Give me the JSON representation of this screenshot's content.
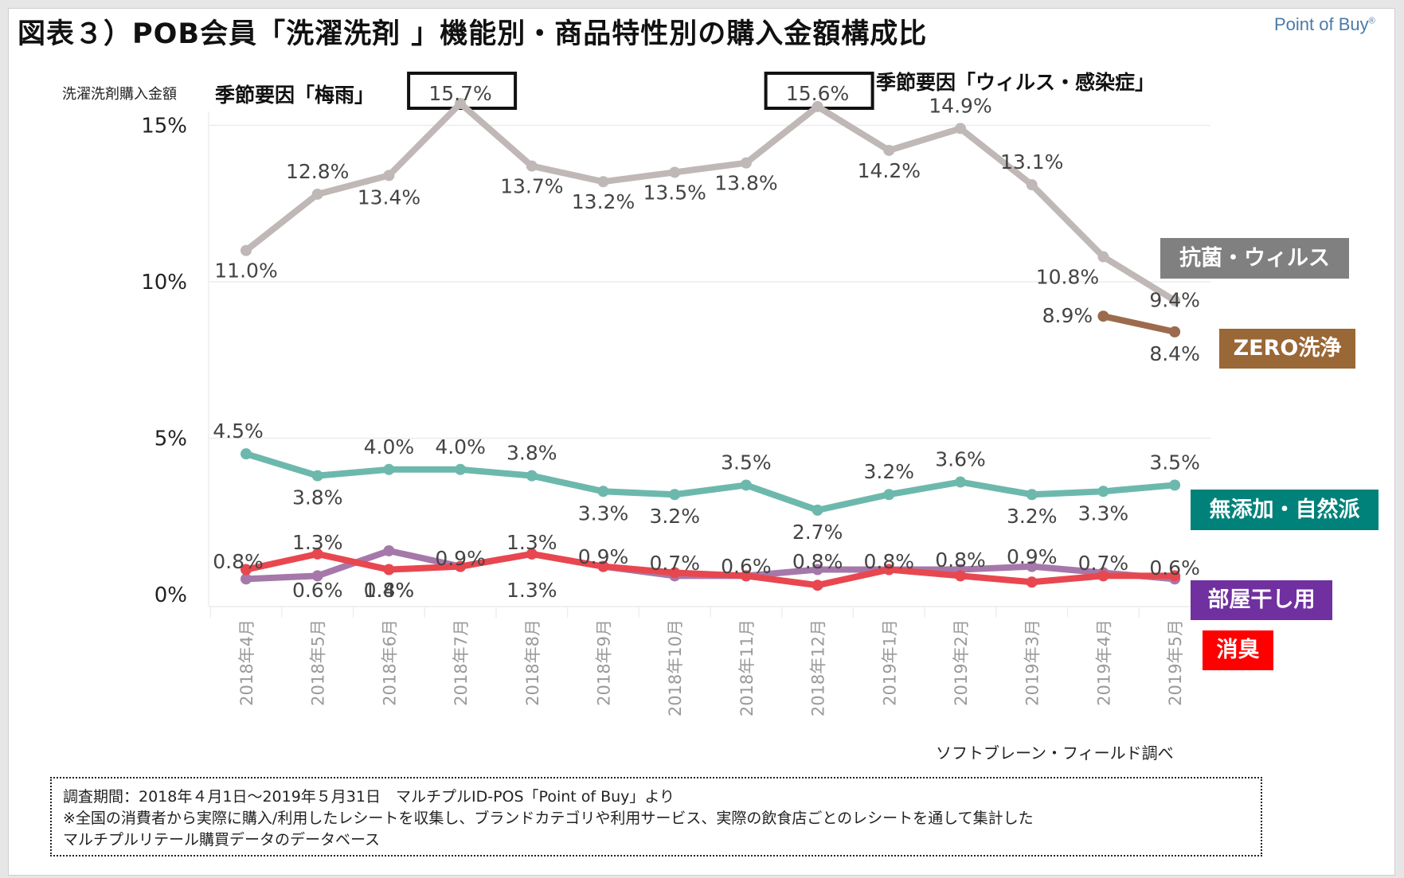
{
  "header": {
    "title": "図表３）POB会員「洗濯洗剤 」機能別・商品特性別の購入金額構成比",
    "logo": "Point of Buy",
    "logo_mark": "®"
  },
  "annotations": {
    "season_rain": "季節要因「梅雨」",
    "season_virus": "季節要因「ウィルス・感染症」",
    "boxed_values": [
      "15.7%",
      "15.6%"
    ]
  },
  "legend_badges": [
    {
      "label": "抗菌・ウィルス",
      "color": "#808080"
    },
    {
      "label": "ZERO洗浄",
      "color": "#9a6736"
    },
    {
      "label": "無添加・自然派",
      "color": "#00827a"
    },
    {
      "label": "部屋干し用",
      "color": "#7030a0"
    },
    {
      "label": "消臭",
      "color": "#ff0000"
    }
  ],
  "source": "ソフトブレーン・フィールド調べ",
  "footnote": {
    "line1": "調査期間：2018年４月1日～2019年５月31日　マルチプルID-POS「Point of Buy」より",
    "line2": "※全国の消費者から実際に購入/利用したレシートを収集し、ブランドカテゴリや利用サービス、実際の飲食店ごとのレシートを通して集計した",
    "line3": "マルチプルリテール購買データのデータベース"
  },
  "chart_data": {
    "type": "line",
    "title": "図表３）POB会員「洗濯洗剤 」機能別・商品特性別の購入金額構成比",
    "xlabel": "",
    "ylabel": "洗濯洗剤購入金額",
    "ylim": [
      0,
      15.7
    ],
    "yticks": [
      0,
      5,
      10,
      15
    ],
    "ytick_labels": [
      "0%",
      "5%",
      "10%",
      "15%"
    ],
    "grid": true,
    "legend_placement": "right",
    "categories": [
      "2018年4月",
      "2018年5月",
      "2018年6月",
      "2018年7月",
      "2018年8月",
      "2018年9月",
      "2018年10月",
      "2018年11月",
      "2018年12月",
      "2019年1月",
      "2019年2月",
      "2019年3月",
      "2019年4月",
      "2019年5月"
    ],
    "series": [
      {
        "name": "抗菌・ウィルス",
        "color": "#bfb8b6",
        "values": [
          11.0,
          12.8,
          13.4,
          15.7,
          13.7,
          13.2,
          13.5,
          13.8,
          15.6,
          14.2,
          14.9,
          13.1,
          10.8,
          9.4
        ]
      },
      {
        "name": "ZERO洗浄",
        "color": "#9c6b4e",
        "values": [
          null,
          null,
          null,
          null,
          null,
          null,
          null,
          null,
          null,
          null,
          null,
          null,
          8.9,
          8.4
        ]
      },
      {
        "name": "無添加・自然派",
        "color": "#6db8ad",
        "values": [
          4.5,
          3.8,
          4.0,
          4.0,
          3.8,
          3.3,
          3.2,
          3.5,
          2.7,
          3.2,
          3.6,
          3.2,
          3.3,
          3.5
        ]
      },
      {
        "name": "部屋干し用",
        "color": "#a678aa",
        "values": [
          0.5,
          0.6,
          1.4,
          0.9,
          1.3,
          0.9,
          0.6,
          0.6,
          0.8,
          0.8,
          0.8,
          0.9,
          0.7,
          0.5
        ]
      },
      {
        "name": "消臭",
        "color": "#e8474f",
        "values": [
          0.8,
          1.3,
          0.8,
          0.9,
          1.3,
          0.9,
          0.7,
          0.6,
          0.3,
          0.8,
          0.6,
          0.4,
          0.6,
          0.6
        ]
      }
    ],
    "data_labels": {
      "抗菌・ウィルス": [
        "11.0%",
        "12.8%",
        "13.4%",
        "15.7%",
        "13.7%",
        "13.2%",
        "13.5%",
        "13.8%",
        "15.6%",
        "14.2%",
        "14.9%",
        "13.1%",
        "10.8%",
        "9.4%"
      ],
      "ZERO洗浄": [
        null,
        null,
        null,
        null,
        null,
        null,
        null,
        null,
        null,
        null,
        null,
        null,
        "8.9%",
        "8.4%"
      ],
      "無添加・自然派": [
        "4.5%",
        "3.8%",
        "4.0%",
        "4.0%",
        "3.8%",
        "3.3%",
        "3.2%",
        "3.5%",
        "2.7%",
        "3.2%",
        "3.6%",
        "3.2%",
        "3.3%",
        "3.5%"
      ],
      "部屋干し用": [
        null,
        "0.6%",
        "1.4%",
        "0.9%",
        "1.3%",
        "0.9%",
        null,
        null,
        "0.8%",
        "0.8%",
        "0.8%",
        "0.9%",
        "0.7%",
        null
      ],
      "消臭": [
        "0.8%",
        "1.3%",
        "0.8%",
        null,
        "1.3%",
        null,
        "0.7%",
        "0.6%",
        null,
        null,
        null,
        null,
        null,
        "0.6%"
      ]
    }
  }
}
